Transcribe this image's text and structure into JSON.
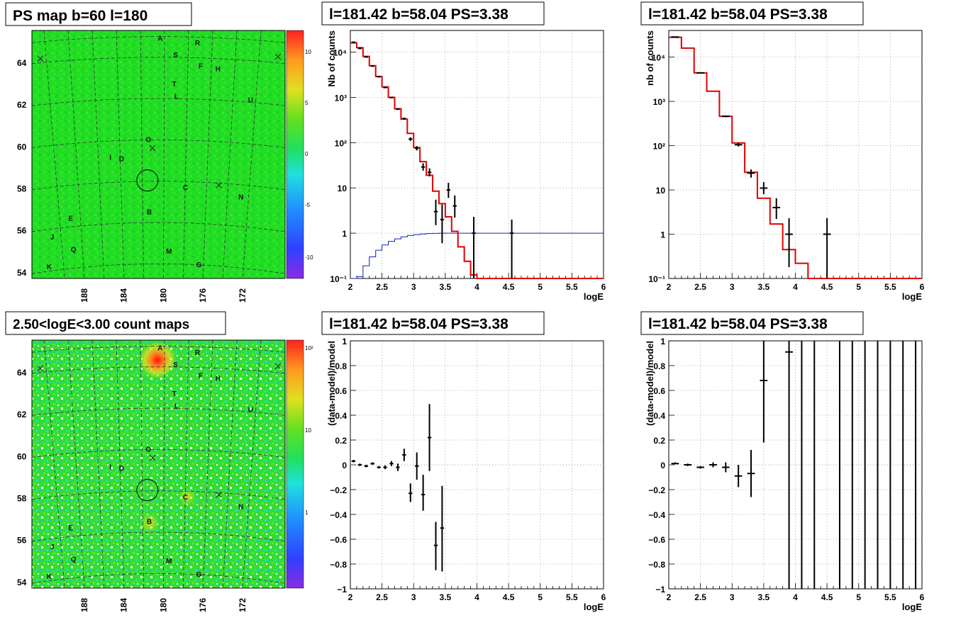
{
  "panels": {
    "map_ps": {
      "title": "PS map b=60 l=180"
    },
    "map_counts": {
      "title": "2.50<logE<3.00 count maps"
    },
    "spec_left": {
      "title": "l=181.42 b=58.04 PS=3.38"
    },
    "spec_right": {
      "title": "l=181.42 b=58.04 PS=3.38"
    },
    "resid_left": {
      "title": "l=181.42 b=58.04 PS=3.38"
    },
    "resid_right": {
      "title": "l=181.42 b=58.04 PS=3.38"
    }
  },
  "colors": {
    "data": "#000000",
    "model": "#e00000",
    "acceptance": "#1020c0",
    "map_bg": "#22dd22"
  },
  "maps": {
    "lat_ticks": [
      "64",
      "62",
      "60",
      "58",
      "56",
      "54"
    ],
    "lon_ticks": [
      "188",
      "184",
      "180",
      "176",
      "172"
    ],
    "ps_colorbar_ticks": [
      "10",
      "5",
      "0",
      "-5",
      "-10"
    ],
    "counts_colorbar_ticks": [
      "10²",
      "10",
      "1"
    ],
    "markers": [
      {
        "label": "A",
        "lon": 180.4,
        "lat": 64.9
      },
      {
        "label": "R",
        "lon": 177.3,
        "lat": 64.7
      },
      {
        "label": "S",
        "lon": 179.1,
        "lat": 64.1
      },
      {
        "label": "F",
        "lon": 177.0,
        "lat": 63.6
      },
      {
        "label": "H",
        "lon": 175.6,
        "lat": 63.5
      },
      {
        "label": "T",
        "lon": 179.2,
        "lat": 62.7
      },
      {
        "label": "L",
        "lon": 179.0,
        "lat": 62.1
      },
      {
        "label": "U",
        "lon": 172.9,
        "lat": 62.1
      },
      {
        "label": "O",
        "lon": 181.4,
        "lat": 60.0
      },
      {
        "label": "I",
        "lon": 184.4,
        "lat": 59.2
      },
      {
        "label": "D",
        "lon": 183.6,
        "lat": 59.1
      },
      {
        "label": "C",
        "lon": 178.3,
        "lat": 57.7
      },
      {
        "label": "N",
        "lon": 173.7,
        "lat": 57.4
      },
      {
        "label": "B",
        "lon": 181.3,
        "lat": 56.5
      },
      {
        "label": "E",
        "lon": 187.8,
        "lat": 56.4
      },
      {
        "label": "J",
        "lon": 189.3,
        "lat": 55.6
      },
      {
        "label": "Q",
        "lon": 187.6,
        "lat": 54.9
      },
      {
        "label": "M",
        "lon": 179.7,
        "lat": 54.6
      },
      {
        "label": "K",
        "lon": 189.6,
        "lat": 54.2
      },
      {
        "label": "G",
        "lon": 177.2,
        "lat": 54.0
      }
    ]
  },
  "chart_data": [
    {
      "type": "line",
      "panel": "spec_left",
      "title": "l=181.42 b=58.04 PS=3.38",
      "xlabel": "logE",
      "ylabel": "Nb of counts",
      "xlim": [
        2,
        6
      ],
      "ylim": [
        0.1,
        30000
      ],
      "yscale": "log",
      "grid": true,
      "xticks": [
        "2",
        "2.5",
        "3",
        "3.5",
        "4",
        "4.5",
        "5",
        "5.5",
        "6"
      ],
      "yticks": [
        {
          "v": 0.1,
          "t": "10⁻¹"
        },
        {
          "v": 1,
          "t": "1"
        },
        {
          "v": 10,
          "t": "10"
        },
        {
          "v": 100,
          "t": "10²"
        },
        {
          "v": 1000,
          "t": "10³"
        },
        {
          "v": 10000,
          "t": "10⁴"
        }
      ],
      "model_edges": [
        2.0,
        2.1,
        2.2,
        2.3,
        2.4,
        2.5,
        2.6,
        2.7,
        2.8,
        2.9,
        3.0,
        3.1,
        3.2,
        3.3,
        3.4,
        3.5,
        3.6,
        3.7,
        3.8,
        3.9,
        4.0,
        4.1,
        6.0
      ],
      "model_values": [
        16000,
        12500,
        8000,
        5000,
        2900,
        1700,
        1000,
        560,
        330,
        160,
        78,
        38,
        19,
        8.5,
        4.5,
        2.3,
        1.1,
        0.5,
        0.24,
        0.12,
        0.1,
        0.1
      ],
      "acceptance_edges": [
        2.0,
        2.1,
        2.2,
        2.3,
        2.4,
        2.5,
        2.6,
        2.7,
        2.8,
        2.9,
        3.0,
        3.1,
        3.2,
        3.3,
        3.4,
        3.5,
        3.6,
        3.7,
        3.8,
        3.9,
        4.0,
        6.0
      ],
      "acceptance_values": [
        0.06,
        0.11,
        0.19,
        0.3,
        0.42,
        0.55,
        0.66,
        0.75,
        0.83,
        0.89,
        0.93,
        0.96,
        0.98,
        0.99,
        1.0,
        1.0,
        1.0,
        1.0,
        1.0,
        1.0,
        1.0
      ],
      "data": [
        {
          "x": 2.05,
          "y": 16500,
          "xe": 0.05,
          "lo": 16300,
          "hi": 16700
        },
        {
          "x": 2.15,
          "y": 12000,
          "xe": 0.05,
          "lo": 11850,
          "hi": 12150
        },
        {
          "x": 2.25,
          "y": 7800,
          "xe": 0.05,
          "lo": 7700,
          "hi": 7900
        },
        {
          "x": 2.35,
          "y": 4900,
          "xe": 0.05,
          "lo": 4830,
          "hi": 4970
        },
        {
          "x": 2.45,
          "y": 2850,
          "xe": 0.05,
          "lo": 2800,
          "hi": 2900
        },
        {
          "x": 2.55,
          "y": 1650,
          "xe": 0.05,
          "lo": 1610,
          "hi": 1690
        },
        {
          "x": 2.65,
          "y": 990,
          "xe": 0.05,
          "lo": 960,
          "hi": 1020
        },
        {
          "x": 2.75,
          "y": 550,
          "xe": 0.05,
          "lo": 528,
          "hi": 572
        },
        {
          "x": 2.85,
          "y": 340,
          "xe": 0.05,
          "lo": 322,
          "hi": 358
        },
        {
          "x": 2.95,
          "y": 120,
          "xe": 0.05,
          "lo": 109,
          "hi": 131
        },
        {
          "x": 3.05,
          "y": 75,
          "xe": 0.05,
          "lo": 67,
          "hi": 84
        },
        {
          "x": 3.15,
          "y": 29,
          "xe": 0.05,
          "lo": 24,
          "hi": 35
        },
        {
          "x": 3.25,
          "y": 22,
          "xe": 0.05,
          "lo": 18,
          "hi": 27
        },
        {
          "x": 3.35,
          "y": 3,
          "xe": 0.05,
          "lo": 1.5,
          "hi": 5.5
        },
        {
          "x": 3.45,
          "y": 2,
          "xe": 0.05,
          "lo": 0.6,
          "hi": 4.3
        },
        {
          "x": 3.55,
          "y": 9,
          "xe": 0.05,
          "lo": 6,
          "hi": 13
        },
        {
          "x": 3.65,
          "y": 4,
          "xe": 0.05,
          "lo": 2.2,
          "hi": 6.8
        },
        {
          "x": 3.95,
          "y": 1,
          "xe": 0.05,
          "lo": 0.1,
          "hi": 2.3
        },
        {
          "x": 4.55,
          "y": 1,
          "xe": 0.05,
          "lo": 0.1,
          "hi": 2.0
        }
      ]
    },
    {
      "type": "line",
      "panel": "spec_right",
      "title": "l=181.42 b=58.04 PS=3.38",
      "xlabel": "logE",
      "ylabel": "nb of counts",
      "xlim": [
        2,
        6
      ],
      "ylim": [
        0.1,
        40000
      ],
      "yscale": "log",
      "grid": true,
      "xticks": [
        "2",
        "2.5",
        "3",
        "3.5",
        "4",
        "4.5",
        "5",
        "5.5",
        "6"
      ],
      "yticks": [
        {
          "v": 0.1,
          "t": "10⁻¹"
        },
        {
          "v": 1,
          "t": "1"
        },
        {
          "v": 10,
          "t": "10"
        },
        {
          "v": 100,
          "t": "10²"
        },
        {
          "v": 1000,
          "t": "10³"
        },
        {
          "v": 10000,
          "t": "10⁴"
        }
      ],
      "model_edges": [
        2.0,
        2.2,
        2.4,
        2.6,
        2.8,
        3.0,
        3.2,
        3.4,
        3.6,
        3.8,
        4.0,
        4.2,
        6.0
      ],
      "model_values": [
        28000,
        16000,
        4400,
        1700,
        460,
        115,
        25,
        6.5,
        1.7,
        0.45,
        0.22,
        0.1
      ],
      "data": [
        {
          "x": 2.1,
          "y": 28500,
          "xe": 0.1,
          "lo": 28300,
          "hi": 28700
        },
        {
          "x": 2.5,
          "y": 4400,
          "xe": 0.1,
          "lo": 4340,
          "hi": 4460
        },
        {
          "x": 2.9,
          "y": 460,
          "xe": 0.1,
          "lo": 440,
          "hi": 480
        },
        {
          "x": 3.1,
          "y": 105,
          "xe": 0.1,
          "lo": 96,
          "hi": 115
        },
        {
          "x": 3.3,
          "y": 24,
          "xe": 0.1,
          "lo": 19,
          "hi": 29
        },
        {
          "x": 3.5,
          "y": 11,
          "xe": 0.1,
          "lo": 8,
          "hi": 15
        },
        {
          "x": 3.7,
          "y": 4,
          "xe": 0.1,
          "lo": 2.2,
          "hi": 6.5
        },
        {
          "x": 3.9,
          "y": 1,
          "xe": 0.1,
          "lo": 0.18,
          "hi": 2.3
        },
        {
          "x": 4.5,
          "y": 1,
          "xe": 0.1,
          "lo": 0.1,
          "hi": 2.3
        }
      ]
    },
    {
      "type": "scatter",
      "panel": "resid_left",
      "title": "l=181.42 b=58.04 PS=3.38",
      "xlabel": "logE",
      "ylabel": "(data-model)/model",
      "xlim": [
        2,
        6
      ],
      "ylim": [
        -1,
        1
      ],
      "grid": true,
      "xticks": [
        "2",
        "2.5",
        "3",
        "3.5",
        "4",
        "4.5",
        "5",
        "5.5",
        "6"
      ],
      "yticks": [
        {
          "v": -1,
          "t": "−1"
        },
        {
          "v": -0.8,
          "t": "−0.8"
        },
        {
          "v": -0.6,
          "t": "−0.6"
        },
        {
          "v": -0.4,
          "t": "−0.4"
        },
        {
          "v": -0.2,
          "t": "−0.2"
        },
        {
          "v": 0,
          "t": "0"
        },
        {
          "v": 0.2,
          "t": "0.2"
        },
        {
          "v": 0.4,
          "t": "0.4"
        },
        {
          "v": 0.6,
          "t": "0.6"
        },
        {
          "v": 0.8,
          "t": "0.8"
        },
        {
          "v": 1,
          "t": "1"
        }
      ],
      "data": [
        {
          "x": 2.05,
          "y": 0.03,
          "xe": 0.05,
          "lo": 0.02,
          "hi": 0.04
        },
        {
          "x": 2.15,
          "y": 0.0,
          "xe": 0.05,
          "lo": -0.01,
          "hi": 0.01
        },
        {
          "x": 2.25,
          "y": -0.01,
          "xe": 0.05,
          "lo": -0.02,
          "hi": 0.0
        },
        {
          "x": 2.35,
          "y": 0.01,
          "xe": 0.05,
          "lo": 0.0,
          "hi": 0.02
        },
        {
          "x": 2.45,
          "y": -0.02,
          "xe": 0.05,
          "lo": -0.03,
          "hi": -0.01
        },
        {
          "x": 2.55,
          "y": -0.02,
          "xe": 0.05,
          "lo": -0.035,
          "hi": -0.005
        },
        {
          "x": 2.65,
          "y": 0.01,
          "xe": 0.05,
          "lo": -0.01,
          "hi": 0.03
        },
        {
          "x": 2.75,
          "y": -0.02,
          "xe": 0.05,
          "lo": -0.05,
          "hi": 0.01
        },
        {
          "x": 2.85,
          "y": 0.08,
          "xe": 0.05,
          "lo": 0.03,
          "hi": 0.13
        },
        {
          "x": 2.95,
          "y": -0.23,
          "xe": 0.05,
          "lo": -0.3,
          "hi": -0.15
        },
        {
          "x": 3.05,
          "y": -0.01,
          "xe": 0.05,
          "lo": -0.12,
          "hi": 0.1
        },
        {
          "x": 3.15,
          "y": -0.24,
          "xe": 0.05,
          "lo": -0.37,
          "hi": -0.08
        },
        {
          "x": 3.25,
          "y": 0.22,
          "xe": 0.05,
          "lo": -0.05,
          "hi": 0.49
        },
        {
          "x": 3.35,
          "y": -0.65,
          "xe": 0.05,
          "lo": -0.85,
          "hi": -0.46
        },
        {
          "x": 3.45,
          "y": -0.51,
          "xe": 0.05,
          "lo": -0.86,
          "hi": -0.17
        }
      ]
    },
    {
      "type": "scatter",
      "panel": "resid_right",
      "title": "l=181.42 b=58.04 PS=3.38",
      "xlabel": "logE",
      "ylabel": "(data-model)/model",
      "xlim": [
        2,
        6
      ],
      "ylim": [
        -1,
        1
      ],
      "grid": true,
      "xticks": [
        "2",
        "2.5",
        "3",
        "3.5",
        "4",
        "4.5",
        "5",
        "5.5",
        "6"
      ],
      "yticks": [
        {
          "v": -1,
          "t": "−1"
        },
        {
          "v": -0.8,
          "t": "−0.8"
        },
        {
          "v": -0.6,
          "t": "−0.6"
        },
        {
          "v": -0.4,
          "t": "−0.4"
        },
        {
          "v": -0.2,
          "t": "−0.2"
        },
        {
          "v": 0,
          "t": "0"
        },
        {
          "v": 0.2,
          "t": "0.2"
        },
        {
          "v": 0.4,
          "t": "0.4"
        },
        {
          "v": 0.6,
          "t": "0.6"
        },
        {
          "v": 0.8,
          "t": "0.8"
        },
        {
          "v": 1,
          "t": "1"
        }
      ],
      "data": [
        {
          "x": 2.1,
          "y": 0.01,
          "xe": 0.1,
          "lo": 0.005,
          "hi": 0.02
        },
        {
          "x": 2.3,
          "y": 0.0,
          "xe": 0.1,
          "lo": -0.01,
          "hi": 0.01
        },
        {
          "x": 2.5,
          "y": -0.02,
          "xe": 0.1,
          "lo": -0.03,
          "hi": -0.01
        },
        {
          "x": 2.7,
          "y": 0.0,
          "xe": 0.1,
          "lo": -0.02,
          "hi": 0.02
        },
        {
          "x": 2.9,
          "y": -0.02,
          "xe": 0.1,
          "lo": -0.06,
          "hi": 0.02
        },
        {
          "x": 3.1,
          "y": -0.09,
          "xe": 0.1,
          "lo": -0.18,
          "hi": 0.0
        },
        {
          "x": 3.3,
          "y": -0.07,
          "xe": 0.1,
          "lo": -0.26,
          "hi": 0.12
        },
        {
          "x": 3.5,
          "y": 0.68,
          "xe": 0.1,
          "lo": 0.18,
          "hi": 1.0
        },
        {
          "x": 3.9,
          "y": 0.91,
          "xe": 0.1,
          "lo": -1.0,
          "hi": 1.0
        },
        {
          "x": 4.1,
          "y": null,
          "xe": 0,
          "lo": -1.0,
          "hi": 1.0
        },
        {
          "x": 4.3,
          "y": null,
          "xe": 0,
          "lo": -1.0,
          "hi": 1.0
        },
        {
          "x": 4.7,
          "y": null,
          "xe": 0,
          "lo": -1.0,
          "hi": 1.0
        },
        {
          "x": 4.9,
          "y": null,
          "xe": 0,
          "lo": -1.0,
          "hi": 1.0
        },
        {
          "x": 5.1,
          "y": null,
          "xe": 0,
          "lo": -1.0,
          "hi": 1.0
        },
        {
          "x": 5.3,
          "y": null,
          "xe": 0,
          "lo": -1.0,
          "hi": 1.0
        },
        {
          "x": 5.5,
          "y": null,
          "xe": 0,
          "lo": -1.0,
          "hi": 1.0
        },
        {
          "x": 5.7,
          "y": null,
          "xe": 0,
          "lo": -1.0,
          "hi": 1.0
        },
        {
          "x": 5.9,
          "y": null,
          "xe": 0,
          "lo": -1.0,
          "hi": 1.0
        }
      ]
    }
  ]
}
